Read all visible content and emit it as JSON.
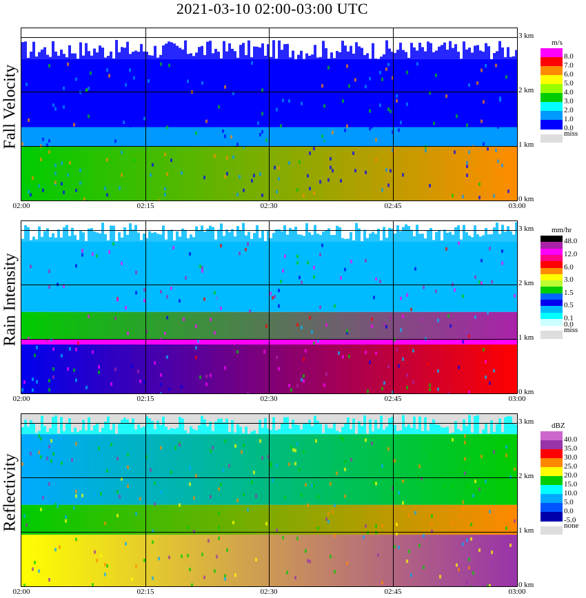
{
  "title": "2021-03-10   02:00-03:00 UTC",
  "x_ticks": [
    "02:00",
    "02:15",
    "02:30",
    "02:45",
    "03:00"
  ],
  "y_ticks": [
    "3 km",
    "2 km",
    "1 km",
    "0 km"
  ],
  "panels": [
    {
      "ylabel": "Fall Velocity",
      "unit": "m/s",
      "legend": [
        {
          "label": "8.0",
          "color": "#ff00ff"
        },
        {
          "label": "7.0",
          "color": "#ff0000"
        },
        {
          "label": "6.0",
          "color": "#ff8c00"
        },
        {
          "label": "5.0",
          "color": "#ffff00"
        },
        {
          "label": "4.0",
          "color": "#99ff00"
        },
        {
          "label": "3.0",
          "color": "#00cc00"
        },
        {
          "label": "2.0",
          "color": "#00ffff"
        },
        {
          "label": "1.0",
          "color": "#0099ff"
        },
        {
          "label": "0.0",
          "color": "#0000ff"
        }
      ],
      "miss_label": "miss",
      "miss_color": "#dddddd"
    },
    {
      "ylabel": "Rain Intensity",
      "unit": "mm/hr",
      "legend": [
        {
          "label": "48.0",
          "color": "#000000"
        },
        {
          "label": "",
          "color": "#aa22aa"
        },
        {
          "label": "12.0",
          "color": "#ff00ff"
        },
        {
          "label": "",
          "color": "#ff0088"
        },
        {
          "label": "6.0",
          "color": "#ff0000"
        },
        {
          "label": "",
          "color": "#ff8c00"
        },
        {
          "label": "3.0",
          "color": "#ffff00"
        },
        {
          "label": "",
          "color": "#bbff33"
        },
        {
          "label": "1.5",
          "color": "#00cc00"
        },
        {
          "label": "",
          "color": "#0066ff"
        },
        {
          "label": "0.5",
          "color": "#0000ee"
        },
        {
          "label": "",
          "color": "#00bbff"
        },
        {
          "label": "0.1",
          "color": "#00ffff"
        },
        {
          "label": "0.0",
          "color": "#ccffff"
        }
      ],
      "miss_label": "miss",
      "miss_color": "#dddddd"
    },
    {
      "ylabel": "Reflectivity",
      "unit": "dBZ",
      "legend": [
        {
          "label": "40.0",
          "color": "#cc66cc"
        },
        {
          "label": "35.0",
          "color": "#9933aa"
        },
        {
          "label": "30.0",
          "color": "#ff0000"
        },
        {
          "label": "25.0",
          "color": "#ff8800"
        },
        {
          "label": "20.0",
          "color": "#ffff00"
        },
        {
          "label": "15.0",
          "color": "#00cc00"
        },
        {
          "label": "10.0",
          "color": "#00ffff"
        },
        {
          "label": "5.0",
          "color": "#00aaff"
        },
        {
          "label": "0.0",
          "color": "#0055ff"
        },
        {
          "label": "-5.0",
          "color": "#0000aa"
        }
      ],
      "miss_label": "none",
      "miss_color": "#dddddd"
    }
  ],
  "chart_data": [
    {
      "type": "heatmap",
      "title": "2021-03-10   02:00-03:00 UTC",
      "ylabel": "Fall Velocity",
      "unit": "m/s",
      "x_range": [
        "02:00",
        "03:00"
      ],
      "y_range_km": [
        0,
        3
      ],
      "bands": [
        {
          "from_km": 0.0,
          "to_km": 1.0,
          "value": "3.0-6.0",
          "color_start": "#00cc00",
          "color_end": "#ff8c00"
        },
        {
          "from_km": 1.0,
          "to_km": 1.35,
          "value": "1.0-2.0",
          "color": "#0099ff"
        },
        {
          "from_km": 1.35,
          "to_km": 2.6,
          "value": "0.0-1.0",
          "color": "#0000ff"
        }
      ]
    },
    {
      "type": "heatmap",
      "title": "2021-03-10   02:00-03:00 UTC",
      "ylabel": "Rain Intensity",
      "unit": "mm/hr",
      "x_range": [
        "02:00",
        "03:00"
      ],
      "y_range_km": [
        0,
        3
      ],
      "bands": [
        {
          "from_km": 0.0,
          "to_km": 0.9,
          "value": "0.5-6.0",
          "color_start": "#0000ee",
          "color_end": "#ff0000"
        },
        {
          "from_km": 0.9,
          "to_km": 1.0,
          "value": "12.0-48.0",
          "color": "#ff00ff"
        },
        {
          "from_km": 1.0,
          "to_km": 1.5,
          "value": "1.5-12.0",
          "color_start": "#00cc00",
          "color_end": "#aa22aa"
        },
        {
          "from_km": 1.5,
          "to_km": 2.8,
          "value": "0.1-1.5",
          "color": "#00bbff"
        }
      ]
    },
    {
      "type": "heatmap",
      "title": "2021-03-10   02:00-03:00 UTC",
      "ylabel": "Reflectivity",
      "unit": "dBZ",
      "x_range": [
        "02:00",
        "03:00"
      ],
      "y_range_km": [
        0,
        3
      ],
      "bands": [
        {
          "from_km": 0.0,
          "to_km": 0.95,
          "value": "20.0-40.0",
          "color_start": "#ffff00",
          "color_end": "#9933aa"
        },
        {
          "from_km": 0.95,
          "to_km": 1.5,
          "value": "15.0-25.0",
          "color_start": "#00cc00",
          "color_end": "#ff8800"
        },
        {
          "from_km": 1.5,
          "to_km": 2.8,
          "value": "0.0-15.0",
          "color_start": "#00aaff",
          "color_end": "#00cc00"
        }
      ]
    }
  ]
}
